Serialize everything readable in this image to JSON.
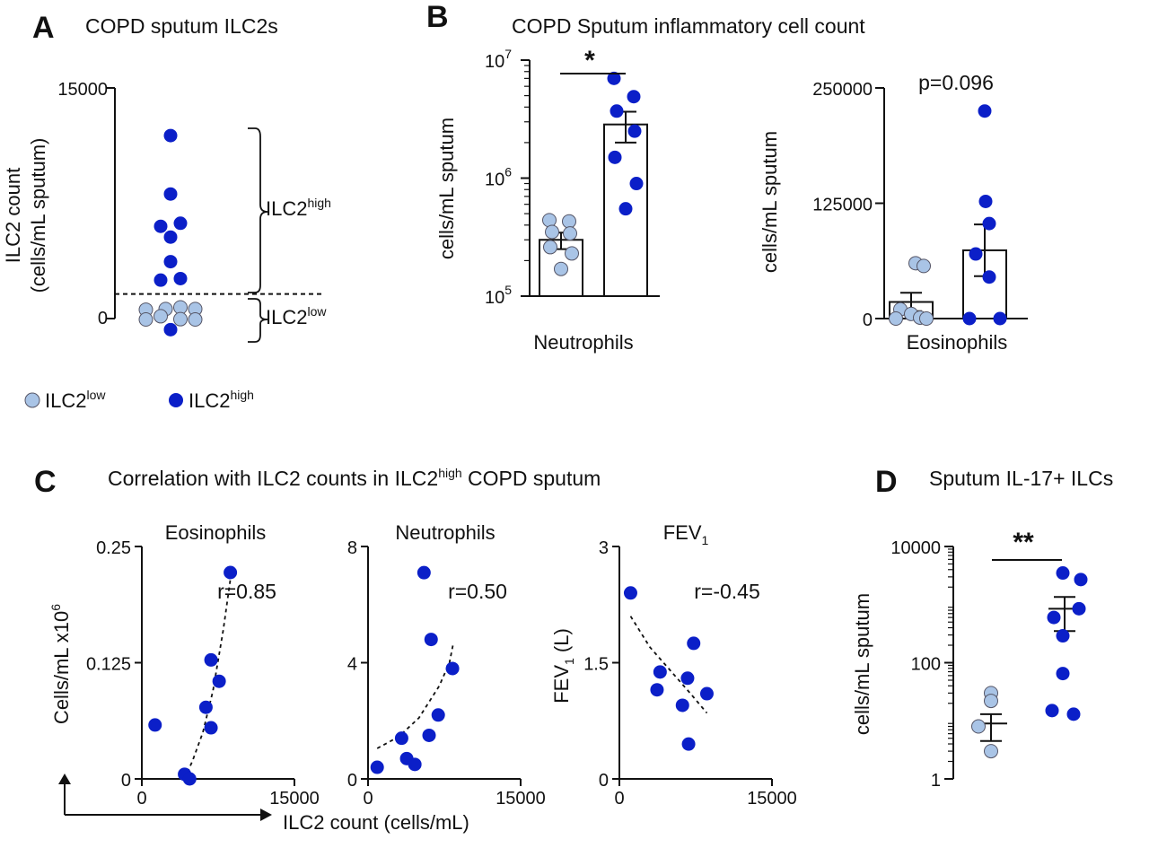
{
  "colors": {
    "low": "#a9c4e6",
    "high": "#0b1fc8",
    "axis": "#111111"
  },
  "chart_data": [
    {
      "panel": "A",
      "type": "scatter",
      "title": "COPD sputum ILC2s",
      "ylabel_line1": "ILC2 count",
      "ylabel_line2": "(cells/mL sputum)",
      "yticks": [
        "15000",
        "0"
      ],
      "ylim": [
        0,
        15000
      ],
      "threshold": 1600,
      "bracket_high": {
        "base": "ILC2",
        "sup": "high"
      },
      "bracket_low": {
        "base": "ILC2",
        "sup": "low"
      },
      "legend": [
        {
          "base": "ILC2",
          "sup": "low",
          "group": "low"
        },
        {
          "base": "ILC2",
          "sup": "high",
          "group": "high"
        }
      ],
      "points": [
        {
          "x": 0,
          "y": 11900,
          "group": "high"
        },
        {
          "x": 0,
          "y": 8100,
          "group": "high"
        },
        {
          "x": -0.5,
          "y": 6000,
          "group": "high"
        },
        {
          "x": 0.5,
          "y": 6200,
          "group": "high"
        },
        {
          "x": 0,
          "y": 5300,
          "group": "high"
        },
        {
          "x": 0,
          "y": 3700,
          "group": "high"
        },
        {
          "x": -0.5,
          "y": 2500,
          "group": "high"
        },
        {
          "x": 0.5,
          "y": 2600,
          "group": "high"
        },
        {
          "x": -1.25,
          "y": 580,
          "group": "low"
        },
        {
          "x": -0.25,
          "y": 620,
          "group": "low"
        },
        {
          "x": 0.5,
          "y": 730,
          "group": "low"
        },
        {
          "x": 1.25,
          "y": 620,
          "group": "low"
        },
        {
          "x": -1.25,
          "y": -60,
          "group": "low"
        },
        {
          "x": -0.5,
          "y": 150,
          "group": "low"
        },
        {
          "x": 0.5,
          "y": -40,
          "group": "low"
        },
        {
          "x": 1.25,
          "y": -60,
          "group": "low"
        },
        {
          "x": 0,
          "y": -720,
          "group": "high"
        }
      ]
    },
    {
      "panel": "B",
      "title": "COPD Sputum inflammatory cell count",
      "subplots": [
        {
          "type": "bar",
          "scale": "log",
          "ylabel": "cells/mL sputum",
          "ylim": [
            100000,
            10000000
          ],
          "yticks": [
            {
              "base": "10",
              "sup": "7"
            },
            {
              "base": "10",
              "sup": "6"
            },
            {
              "base": "10",
              "sup": "5"
            }
          ],
          "xlabel": "Neutrophils",
          "significance": "*",
          "bars": [
            {
              "group": "low",
              "mean": 300000,
              "sem_low": 250000,
              "sem_high": 345000,
              "points": [
                440000,
                430000,
                350000,
                340000,
                260000,
                230000,
                170000
              ]
            },
            {
              "group": "high",
              "mean": 2850000,
              "sem_low": 2000000,
              "sem_high": 3650000,
              "points": [
                7000000,
                4900000,
                3700000,
                2500000,
                1500000,
                900000,
                550000
              ]
            }
          ]
        },
        {
          "type": "bar",
          "scale": "linear",
          "ylabel": "cells/mL sputum",
          "ylim": [
            0,
            250000
          ],
          "yticks": [
            "250000",
            "125000",
            "0"
          ],
          "xlabel": "Eosinophils",
          "annotation": "p=0.096",
          "bars": [
            {
              "group": "low",
              "mean": 18000,
              "sem_low": 8000,
              "sem_high": 28000,
              "points": [
                60000,
                57000,
                10000,
                5000,
                1000,
                0,
                0
              ]
            },
            {
              "group": "high",
              "mean": 74000,
              "sem_low": 46000,
              "sem_high": 102000,
              "points": [
                225000,
                127000,
                103000,
                70000,
                45000,
                0,
                0
              ]
            }
          ]
        }
      ]
    },
    {
      "panel": "C",
      "title_base": "Correlation with ILC2 counts in ILC2",
      "title_sup": "high",
      "title_end": " COPD sputum",
      "xlabel": "ILC2 count (cells/mL)",
      "subplots": [
        {
          "type": "scatter",
          "title": "Eosinophils",
          "ylabel_base": "Cells/mL x10",
          "ylabel_sup": "6",
          "ylim": [
            0,
            0.25
          ],
          "xlim": [
            0,
            15000
          ],
          "yticks": [
            "0.25",
            "0.125",
            "0"
          ],
          "xticks": [
            "0",
            "15000"
          ],
          "r_label": "r=0.85",
          "points": [
            [
              1300,
              0.058
            ],
            [
              4200,
              0.005
            ],
            [
              4700,
              0.0
            ],
            [
              6300,
              0.077
            ],
            [
              6800,
              0.055
            ],
            [
              6800,
              0.128
            ],
            [
              7600,
              0.105
            ],
            [
              8700,
              0.222
            ]
          ],
          "fit": [
            [
              4200,
              0.0
            ],
            [
              5000,
              0.02
            ],
            [
              6000,
              0.05
            ],
            [
              7000,
              0.095
            ],
            [
              8000,
              0.16
            ],
            [
              8800,
              0.222
            ]
          ]
        },
        {
          "type": "scatter",
          "title": "Neutrophils",
          "ylim": [
            0,
            8
          ],
          "xlim": [
            0,
            15000
          ],
          "yticks": [
            "8",
            "4",
            "0"
          ],
          "xticks": [
            "0",
            "15000"
          ],
          "r_label": "r=0.50",
          "points": [
            [
              900,
              0.4
            ],
            [
              3300,
              1.4
            ],
            [
              3800,
              0.7
            ],
            [
              4600,
              0.5
            ],
            [
              5500,
              7.1
            ],
            [
              6000,
              1.5
            ],
            [
              6200,
              4.8
            ],
            [
              6900,
              2.2
            ],
            [
              8300,
              3.8
            ]
          ],
          "fit": [
            [
              900,
              1.05
            ],
            [
              3000,
              1.45
            ],
            [
              5000,
              2.1
            ],
            [
              7000,
              3.2
            ],
            [
              8000,
              4.0
            ],
            [
              8400,
              4.7
            ]
          ]
        },
        {
          "type": "scatter",
          "title_base": "FEV",
          "title_sub": "1",
          "ylabel_base": "FEV",
          "ylabel_sub": "1",
          "ylabel_end": " (L)",
          "ylim": [
            0,
            3
          ],
          "xlim": [
            0,
            15000
          ],
          "yticks": [
            "3",
            "1.5",
            "0"
          ],
          "xticks": [
            "0",
            "15000"
          ],
          "r_label": "r=-0.45",
          "points": [
            [
              1100,
              2.4
            ],
            [
              3700,
              1.15
            ],
            [
              4000,
              1.38
            ],
            [
              6200,
              0.95
            ],
            [
              6700,
              1.3
            ],
            [
              6800,
              0.45
            ],
            [
              7300,
              1.75
            ],
            [
              8600,
              1.1
            ]
          ],
          "fit": [
            [
              1100,
              2.1
            ],
            [
              3000,
              1.7
            ],
            [
              5000,
              1.4
            ],
            [
              7000,
              1.1
            ],
            [
              8600,
              0.85
            ]
          ]
        }
      ]
    },
    {
      "panel": "D",
      "type": "scatter",
      "scale": "log",
      "title": "Sputum IL-17+ ILCs",
      "ylabel": "cells/mL sputum",
      "ylim": [
        1,
        10000
      ],
      "yticks": [
        "10000",
        "100",
        "1"
      ],
      "significance": "**",
      "groups": [
        {
          "group": "low",
          "mean": 9,
          "sem_low": 4.5,
          "sem_high": 13,
          "points": [
            30,
            22,
            8,
            3
          ]
        },
        {
          "group": "high",
          "mean": 850,
          "sem_low": 350,
          "sem_high": 1350,
          "points": [
            3500,
            2700,
            850,
            600,
            290,
            65,
            15,
            13
          ]
        }
      ]
    }
  ]
}
